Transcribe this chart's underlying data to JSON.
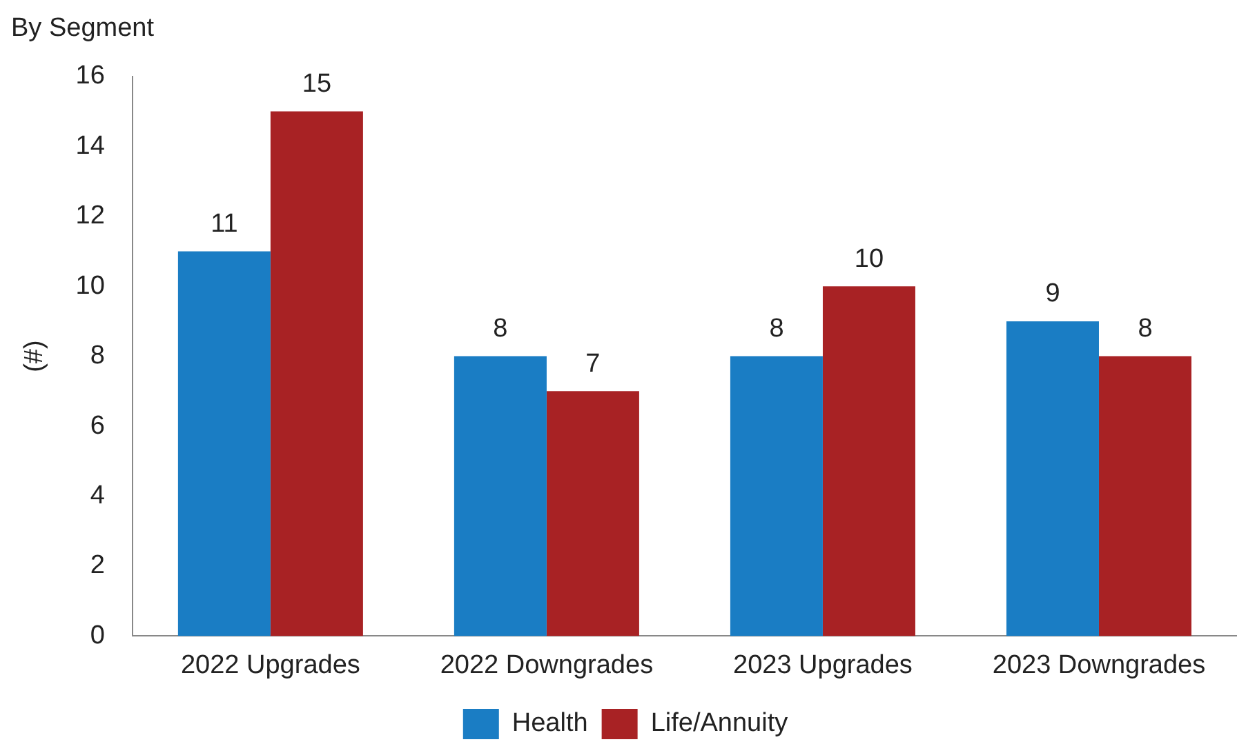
{
  "chart_data": {
    "type": "bar",
    "subtitle": "By Segment",
    "ylabel": "(#)",
    "categories": [
      "2022 Upgrades",
      "2022 Downgrades",
      "2023 Upgrades",
      "2023 Downgrades"
    ],
    "series": [
      {
        "name": "Health",
        "color": "#1a7dc4",
        "values": [
          11,
          8,
          8,
          9
        ]
      },
      {
        "name": "Life/Annuity",
        "color": "#a82224",
        "values": [
          15,
          7,
          10,
          8
        ]
      }
    ],
    "ylim": [
      0,
      16
    ],
    "yticks": [
      0,
      2,
      4,
      6,
      8,
      10,
      12,
      14,
      16
    ],
    "grid": false,
    "legend": "bottom",
    "data_labels": true
  }
}
